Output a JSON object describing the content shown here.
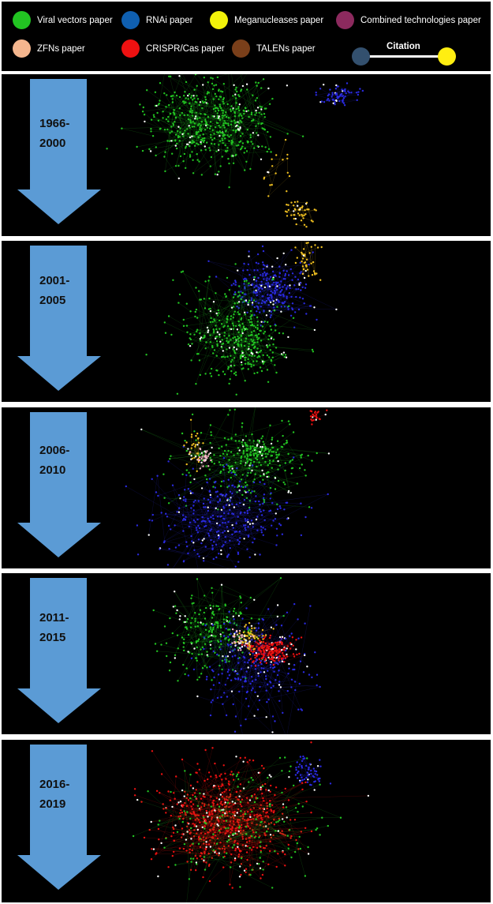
{
  "legend": {
    "items": [
      {
        "label": "Viral vectors paper",
        "color": "#22c422"
      },
      {
        "label": "RNAi paper",
        "color": "#0f5fb0"
      },
      {
        "label": "Meganucleases paper",
        "color": "#f2f20a"
      },
      {
        "label": "Combined technologies paper",
        "color": "#8c2a5e"
      },
      {
        "label": "ZFNs paper",
        "color": "#f5b68e"
      },
      {
        "label": "CRISPR/Cas paper",
        "color": "#ee1111"
      },
      {
        "label": "TALENs paper",
        "color": "#7a3f1a"
      }
    ],
    "citation": {
      "label": "Citation",
      "from_color": "#33506e",
      "to_color": "#ffee11"
    }
  },
  "colors": {
    "viral": "#22c422",
    "rnai": "#2a2ae0",
    "mega": "#f0c020",
    "zfn": "#f5b8c8",
    "crispr": "#ee1111",
    "arrow": "#5b9bd5"
  },
  "panels": [
    {
      "period": "1966-\n2000"
    },
    {
      "period": "2001-\n2005"
    },
    {
      "period": "2006-\n2010"
    },
    {
      "period": "2011-\n2015"
    },
    {
      "period": "2016-\n2019"
    }
  ]
}
